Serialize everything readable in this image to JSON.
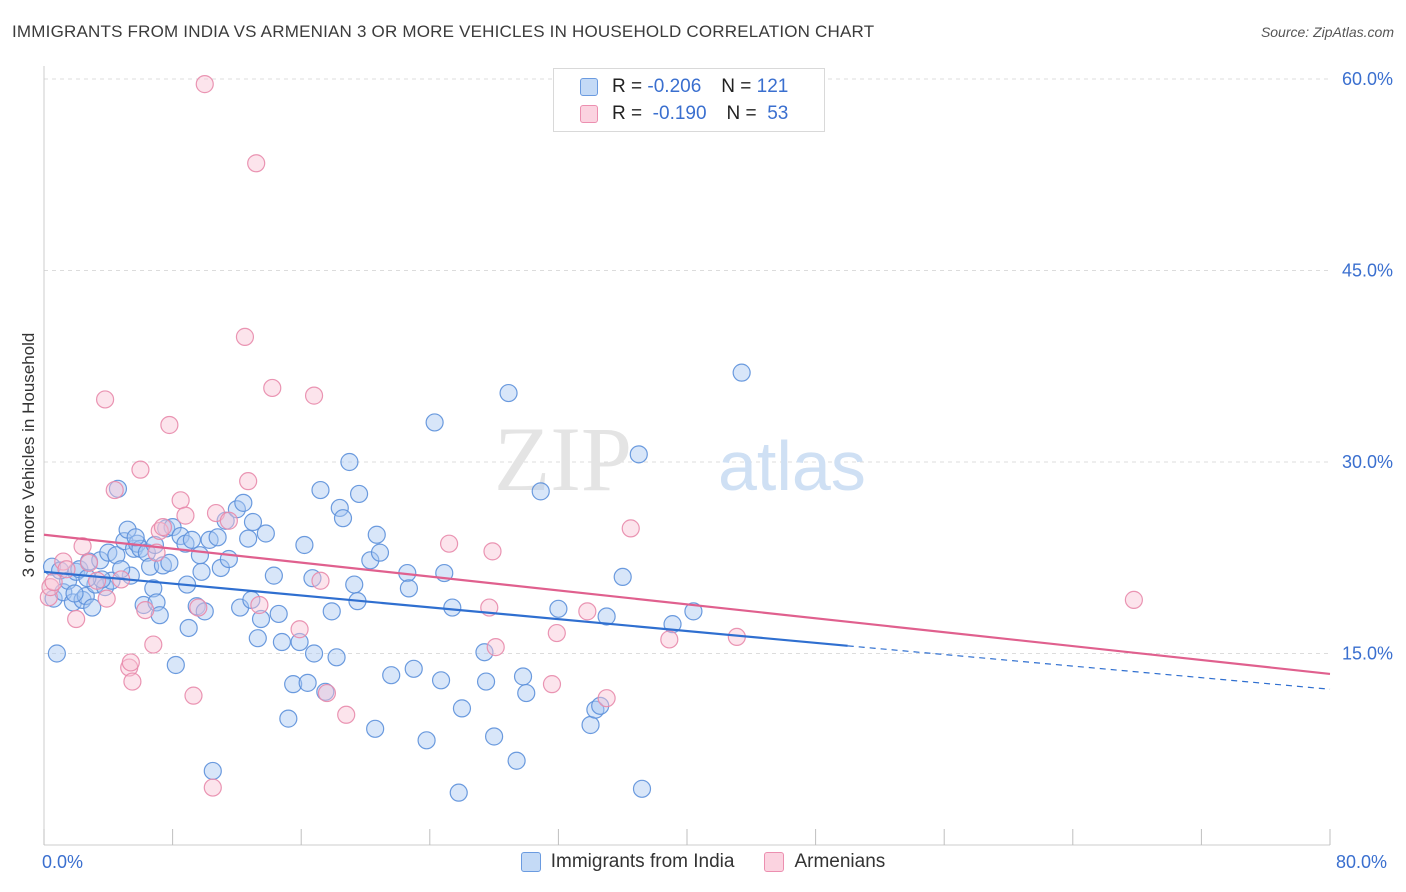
{
  "header": {
    "title": "IMMIGRANTS FROM INDIA VS ARMENIAN 3 OR MORE VEHICLES IN HOUSEHOLD CORRELATION CHART",
    "source": "Source: ZipAtlas.com"
  },
  "watermark": {
    "zip": "ZIP",
    "atlas": "atlas"
  },
  "legend": {
    "rows": [
      {
        "r_label": "R =",
        "r_value": "-0.206",
        "n_label": "N =",
        "n_value": "121",
        "color": "#a9c8f2"
      },
      {
        "r_label": "R =",
        "r_value": "-0.190",
        "n_label": "N =",
        "n_value": "53",
        "color": "#f5b6ca"
      }
    ]
  },
  "bottom_legend": {
    "items": [
      {
        "label": "Immigrants from India",
        "color": "#a9c8f2"
      },
      {
        "label": "Armenians",
        "color": "#f5b6ca"
      }
    ]
  },
  "chart_data": {
    "type": "scatter",
    "title": "IMMIGRANTS FROM INDIA VS ARMENIAN 3 OR MORE VEHICLES IN HOUSEHOLD CORRELATION CHART",
    "xlabel": "",
    "ylabel": "3 or more Vehicles in Household",
    "xlim": [
      0,
      80
    ],
    "ylim": [
      0,
      60
    ],
    "x_tick_labels": [
      "0.0%",
      "80.0%"
    ],
    "y_ticks": [
      15,
      30,
      45,
      60
    ],
    "y_tick_labels": [
      "15.0%",
      "30.0%",
      "45.0%",
      "60.0%"
    ],
    "grid": true,
    "legend_position": "top-center",
    "colors": {
      "india": "#4a86d8",
      "armenians": "#e87aa0",
      "india_line": "#2f6fd0",
      "armenians_line": "#e0608e"
    },
    "series": [
      {
        "name": "Immigrants from India",
        "r": -0.206,
        "n": 121,
        "trend": {
          "x0": 0,
          "y0": 21.4,
          "x1": 50,
          "y1": 15.6,
          "dashed_to_x": 80,
          "dashed_to_y": 12.2
        },
        "points": [
          [
            0.5,
            21.8
          ],
          [
            0.6,
            19.3
          ],
          [
            0.8,
            15.0
          ],
          [
            1.0,
            21.5
          ],
          [
            1.2,
            19.8
          ],
          [
            1.5,
            20.7
          ],
          [
            1.8,
            19.0
          ],
          [
            2.0,
            21.4
          ],
          [
            2.2,
            21.6
          ],
          [
            2.4,
            19.2
          ],
          [
            2.6,
            19.5
          ],
          [
            2.8,
            22.2
          ],
          [
            3.0,
            18.6
          ],
          [
            3.2,
            20.4
          ],
          [
            3.5,
            22.3
          ],
          [
            3.8,
            20.2
          ],
          [
            4.0,
            22.9
          ],
          [
            4.2,
            20.7
          ],
          [
            4.5,
            22.7
          ],
          [
            4.6,
            27.9
          ],
          [
            5.0,
            23.8
          ],
          [
            5.2,
            24.7
          ],
          [
            5.4,
            21.1
          ],
          [
            5.6,
            23.2
          ],
          [
            5.8,
            23.6
          ],
          [
            6.0,
            23.2
          ],
          [
            6.2,
            18.8
          ],
          [
            6.4,
            22.9
          ],
          [
            6.6,
            21.8
          ],
          [
            6.8,
            20.1
          ],
          [
            7.0,
            19.0
          ],
          [
            7.2,
            18.0
          ],
          [
            7.4,
            21.9
          ],
          [
            7.6,
            24.8
          ],
          [
            7.8,
            22.1
          ],
          [
            8.0,
            24.9
          ],
          [
            8.2,
            14.1
          ],
          [
            8.5,
            24.2
          ],
          [
            8.8,
            23.6
          ],
          [
            9.0,
            17.0
          ],
          [
            9.2,
            23.9
          ],
          [
            9.5,
            18.7
          ],
          [
            9.8,
            21.4
          ],
          [
            10.0,
            18.3
          ],
          [
            10.3,
            23.9
          ],
          [
            10.5,
            5.8
          ],
          [
            10.8,
            24.1
          ],
          [
            11.0,
            21.7
          ],
          [
            11.3,
            25.4
          ],
          [
            11.5,
            22.4
          ],
          [
            12.0,
            26.3
          ],
          [
            12.2,
            18.6
          ],
          [
            12.4,
            26.8
          ],
          [
            12.7,
            24.0
          ],
          [
            13.0,
            25.3
          ],
          [
            13.3,
            16.2
          ],
          [
            13.5,
            17.7
          ],
          [
            13.8,
            24.4
          ],
          [
            14.3,
            21.1
          ],
          [
            14.6,
            18.1
          ],
          [
            14.8,
            15.9
          ],
          [
            15.2,
            9.9
          ],
          [
            15.5,
            12.6
          ],
          [
            15.9,
            15.9
          ],
          [
            16.2,
            23.5
          ],
          [
            16.4,
            12.7
          ],
          [
            16.7,
            20.9
          ],
          [
            16.8,
            15.0
          ],
          [
            17.2,
            27.8
          ],
          [
            17.5,
            12.0
          ],
          [
            17.9,
            18.3
          ],
          [
            18.2,
            14.7
          ],
          [
            18.4,
            26.4
          ],
          [
            18.6,
            25.6
          ],
          [
            19.0,
            30.0
          ],
          [
            19.3,
            20.4
          ],
          [
            19.5,
            19.1
          ],
          [
            19.6,
            27.5
          ],
          [
            20.3,
            22.3
          ],
          [
            20.6,
            9.1
          ],
          [
            20.7,
            24.3
          ],
          [
            20.9,
            22.9
          ],
          [
            21.6,
            13.3
          ],
          [
            22.6,
            21.3
          ],
          [
            22.7,
            20.1
          ],
          [
            23.0,
            13.8
          ],
          [
            23.8,
            8.2
          ],
          [
            24.3,
            33.1
          ],
          [
            24.7,
            12.9
          ],
          [
            24.9,
            21.3
          ],
          [
            25.4,
            18.6
          ],
          [
            25.8,
            4.1
          ],
          [
            26.0,
            10.7
          ],
          [
            27.4,
            15.1
          ],
          [
            27.5,
            12.8
          ],
          [
            28.0,
            8.5
          ],
          [
            28.9,
            35.4
          ],
          [
            29.4,
            6.6
          ],
          [
            29.8,
            13.2
          ],
          [
            30.0,
            11.9
          ],
          [
            30.9,
            27.7
          ],
          [
            32.0,
            18.5
          ],
          [
            34.0,
            9.4
          ],
          [
            34.3,
            10.6
          ],
          [
            34.6,
            10.9
          ],
          [
            35.0,
            17.9
          ],
          [
            36.0,
            21.0
          ],
          [
            37.0,
            30.6
          ],
          [
            37.2,
            4.4
          ],
          [
            39.1,
            17.3
          ],
          [
            40.4,
            18.3
          ],
          [
            43.4,
            37.0
          ],
          [
            5.7,
            24.1
          ],
          [
            6.9,
            23.5
          ],
          [
            3.6,
            20.8
          ],
          [
            1.9,
            19.7
          ],
          [
            8.9,
            20.4
          ],
          [
            12.9,
            19.2
          ],
          [
            2.7,
            20.9
          ],
          [
            4.8,
            21.6
          ],
          [
            9.7,
            22.7
          ]
        ]
      },
      {
        "name": "Armenians",
        "r": -0.19,
        "n": 53,
        "trend": {
          "x0": 0,
          "y0": 24.3,
          "x1": 80,
          "y1": 13.4
        },
        "points": [
          [
            0.3,
            19.4
          ],
          [
            0.4,
            20.2
          ],
          [
            0.6,
            20.6
          ],
          [
            1.2,
            22.2
          ],
          [
            1.4,
            21.6
          ],
          [
            2.0,
            17.7
          ],
          [
            2.4,
            23.4
          ],
          [
            2.8,
            22.1
          ],
          [
            3.3,
            20.7
          ],
          [
            3.8,
            34.9
          ],
          [
            3.9,
            19.3
          ],
          [
            4.4,
            27.8
          ],
          [
            4.8,
            20.8
          ],
          [
            5.3,
            13.9
          ],
          [
            5.4,
            14.3
          ],
          [
            5.5,
            12.8
          ],
          [
            6.0,
            29.4
          ],
          [
            6.3,
            18.4
          ],
          [
            6.8,
            15.7
          ],
          [
            7.0,
            22.9
          ],
          [
            7.2,
            24.6
          ],
          [
            7.4,
            24.9
          ],
          [
            7.8,
            32.9
          ],
          [
            8.5,
            27.0
          ],
          [
            8.8,
            25.8
          ],
          [
            9.3,
            11.7
          ],
          [
            9.6,
            18.6
          ],
          [
            10.0,
            59.6
          ],
          [
            10.5,
            4.5
          ],
          [
            10.7,
            26.0
          ],
          [
            11.5,
            25.4
          ],
          [
            12.5,
            39.8
          ],
          [
            12.7,
            28.5
          ],
          [
            13.2,
            53.4
          ],
          [
            13.4,
            18.8
          ],
          [
            14.2,
            35.8
          ],
          [
            15.9,
            16.9
          ],
          [
            16.8,
            35.2
          ],
          [
            17.2,
            20.7
          ],
          [
            17.6,
            11.9
          ],
          [
            18.8,
            10.2
          ],
          [
            25.2,
            23.6
          ],
          [
            27.7,
            18.6
          ],
          [
            27.9,
            23.0
          ],
          [
            28.1,
            15.5
          ],
          [
            31.6,
            12.6
          ],
          [
            31.9,
            16.6
          ],
          [
            33.8,
            18.3
          ],
          [
            35.0,
            11.5
          ],
          [
            36.5,
            24.8
          ],
          [
            38.9,
            16.1
          ],
          [
            43.1,
            16.3
          ],
          [
            67.8,
            19.2
          ]
        ]
      }
    ]
  }
}
